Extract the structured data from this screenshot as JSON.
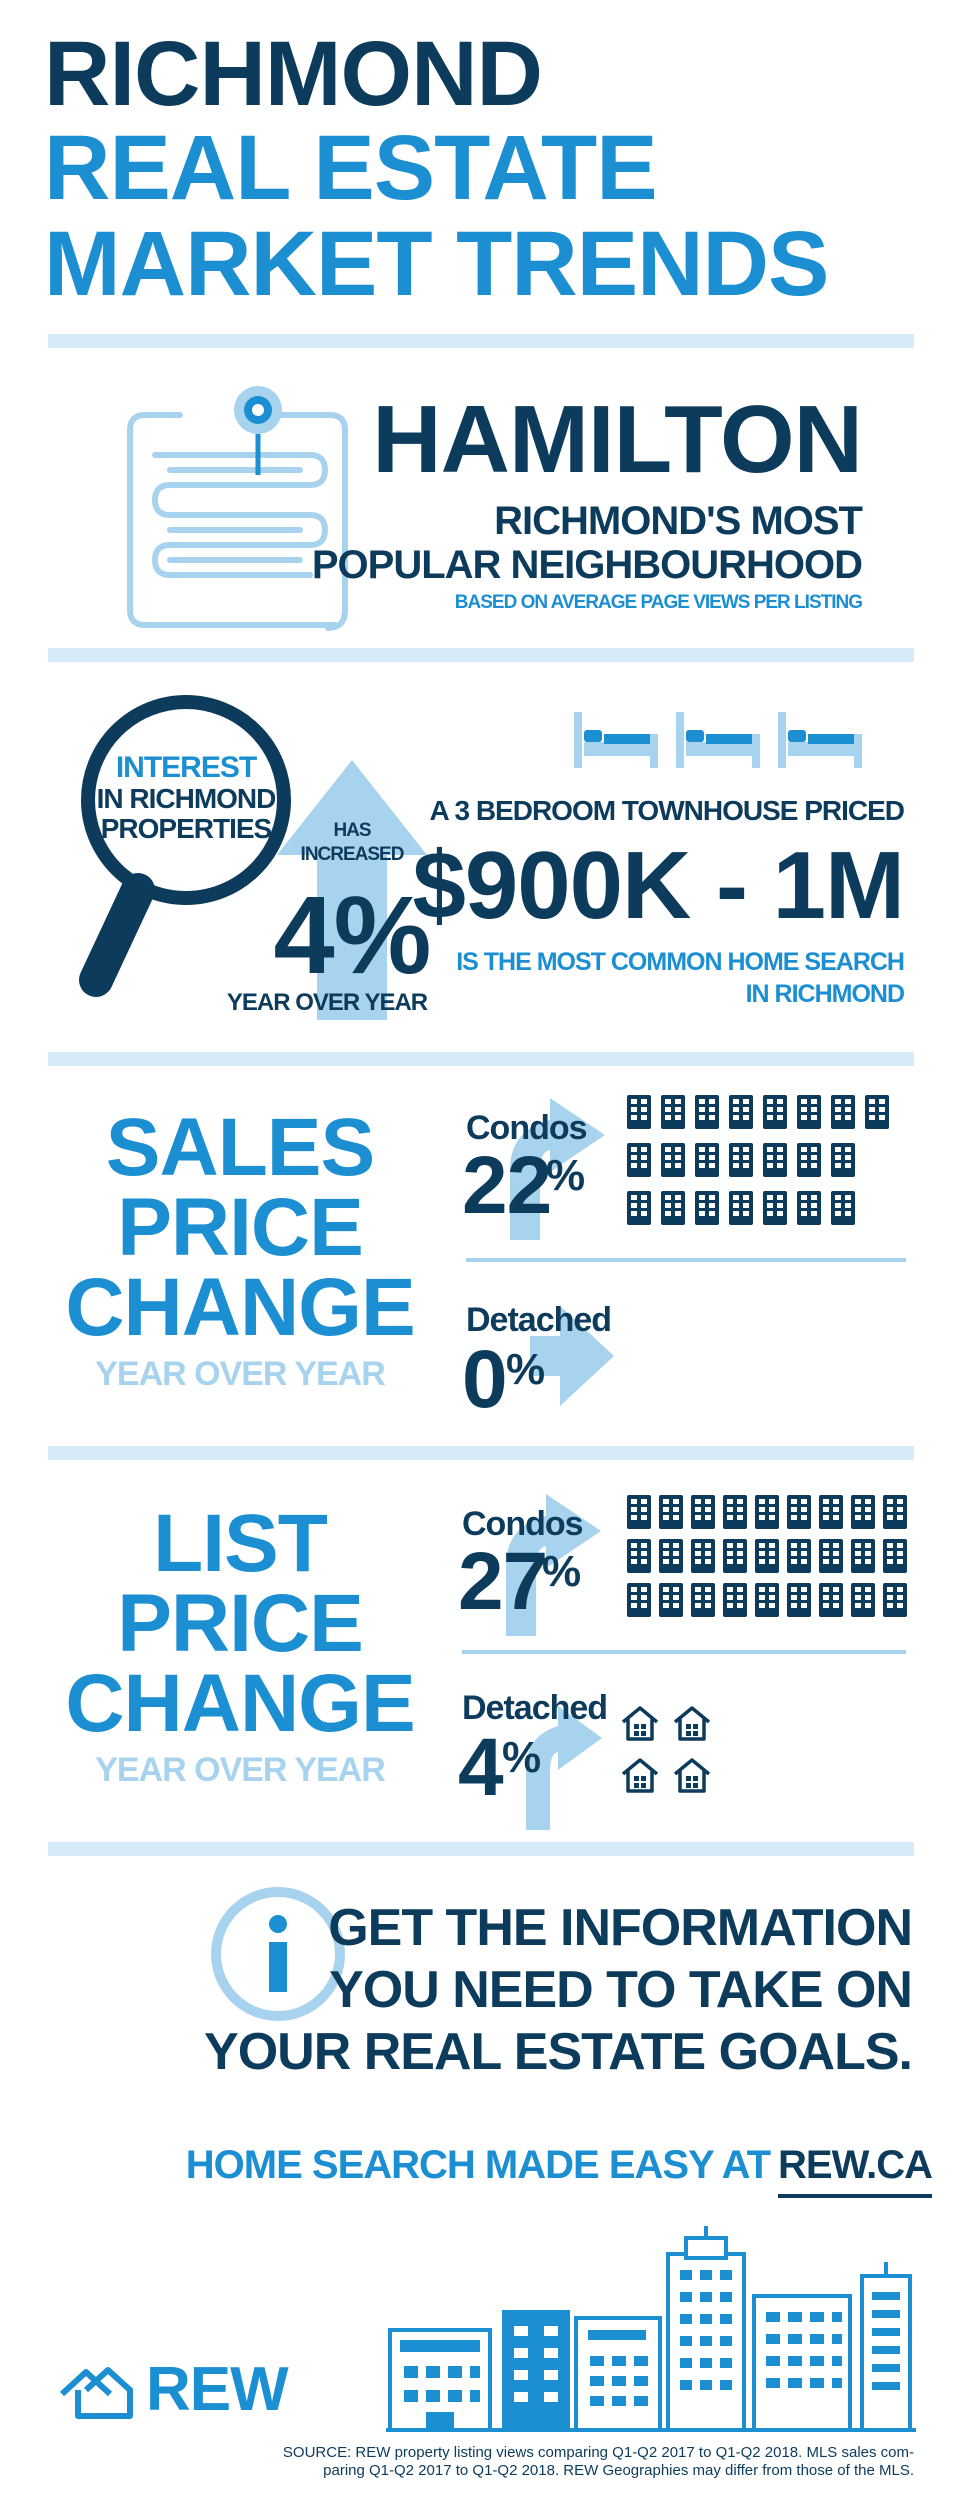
{
  "header": {
    "line1": "RICHMOND",
    "line2": "REAL ESTATE",
    "line3": "MARKET TRENDS"
  },
  "neighbourhood": {
    "name": "HAMILTON",
    "subtitle1": "RICHMOND'S MOST",
    "subtitle2": "POPULAR NEIGHBOURHOOD",
    "note": "BASED ON AVERAGE PAGE VIEWS PER LISTING"
  },
  "interest": {
    "label1": "INTEREST",
    "label2": "IN RICHMOND",
    "label3": "PROPERTIES",
    "has": "HAS",
    "increased": "INCREASED",
    "value": "4%",
    "period": "YEAR OVER YEAR"
  },
  "townhouse": {
    "line1": "A 3 BEDROOM TOWNHOUSE PRICED",
    "price": "$900K - 1M",
    "line2": "IS THE MOST COMMON HOME SEARCH",
    "line3": "IN RICHMOND"
  },
  "sales": {
    "title1": "SALES",
    "title2": "PRICE",
    "title3": "CHANGE",
    "period": "YEAR OVER YEAR",
    "condos_label": "Condos",
    "condos_value": "22",
    "detached_label": "Detached",
    "detached_value": "0",
    "pct": "%"
  },
  "list": {
    "title1": "LIST",
    "title2": "PRICE",
    "title3": "CHANGE",
    "period": "YEAR OVER YEAR",
    "condos_label": "Condos",
    "condos_value": "27",
    "detached_label": "Detached",
    "detached_value": "4",
    "pct": "%"
  },
  "cta": {
    "line1": "GET THE INFORMATION",
    "line2": "YOU NEED TO TAKE ON",
    "line3": "YOUR REAL ESTATE GOALS.",
    "search_text": "HOME SEARCH MADE EASY AT",
    "link": "REW.CA"
  },
  "footer": {
    "logo": "REW",
    "source1": "SOURCE: REW property listing views comparing Q1-Q2 2017 to Q1-Q2 2018. MLS sales com-",
    "source2": "paring Q1-Q2 2017 to Q1-Q2 2018. REW Geographies may differ from those of the MLS."
  },
  "colors": {
    "navy": "#0d3b5c",
    "blue": "#1b8fd2",
    "light": "#a8d3ee",
    "pale": "#d7eaf7"
  },
  "icons": [
    "map-pin-icon",
    "scroll-map-icon",
    "magnifier-icon",
    "up-arrow-icon",
    "bed-icon",
    "building-icon",
    "house-icon",
    "right-arrow-icon",
    "info-icon",
    "rew-logo-icon",
    "city-skyline-icon"
  ]
}
